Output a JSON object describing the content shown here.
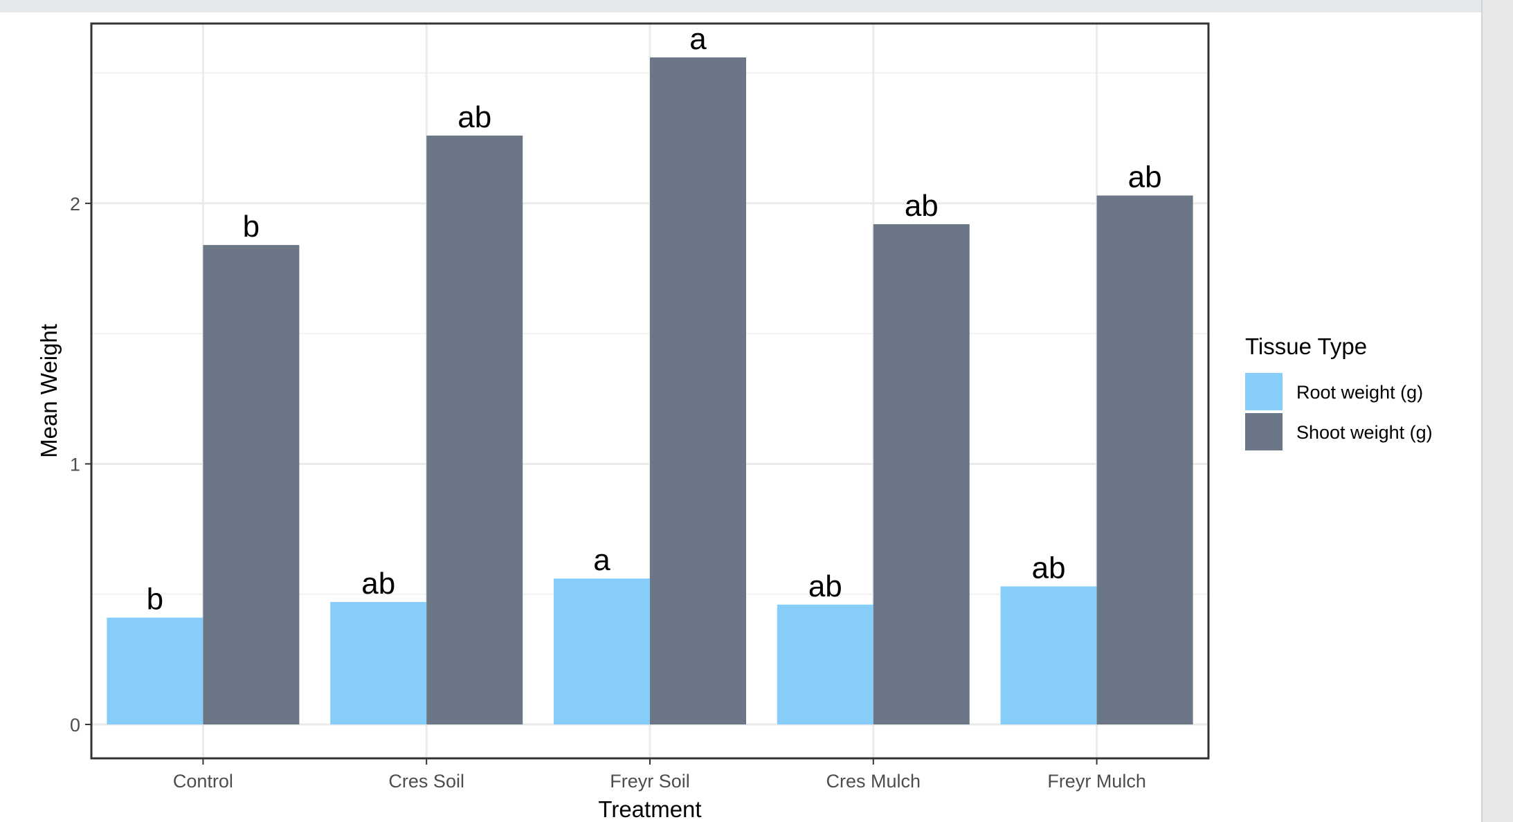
{
  "chart_data": {
    "type": "bar",
    "categories": [
      "Control",
      "Cres Soil",
      "Freyr Soil",
      "Cres Mulch",
      "Freyr Mulch"
    ],
    "series": [
      {
        "name": "Root weight (g)",
        "color": "#87cdf9",
        "values": [
          0.41,
          0.47,
          0.56,
          0.46,
          0.53
        ],
        "labels": [
          "b",
          "ab",
          "a",
          "ab",
          "ab"
        ]
      },
      {
        "name": "Shoot weight (g)",
        "color": "#6b7787",
        "values": [
          1.84,
          2.26,
          2.56,
          1.92,
          2.03
        ],
        "labels": [
          "b",
          "ab",
          "a",
          "ab",
          "ab"
        ]
      }
    ],
    "xlabel": "Treatment",
    "ylabel": "Mean Weight",
    "yticks": [
      0,
      1,
      2
    ],
    "ylim": [
      -0.13,
      2.69
    ],
    "grid": true,
    "legend": {
      "title": "Tissue Type",
      "position": "right"
    }
  }
}
